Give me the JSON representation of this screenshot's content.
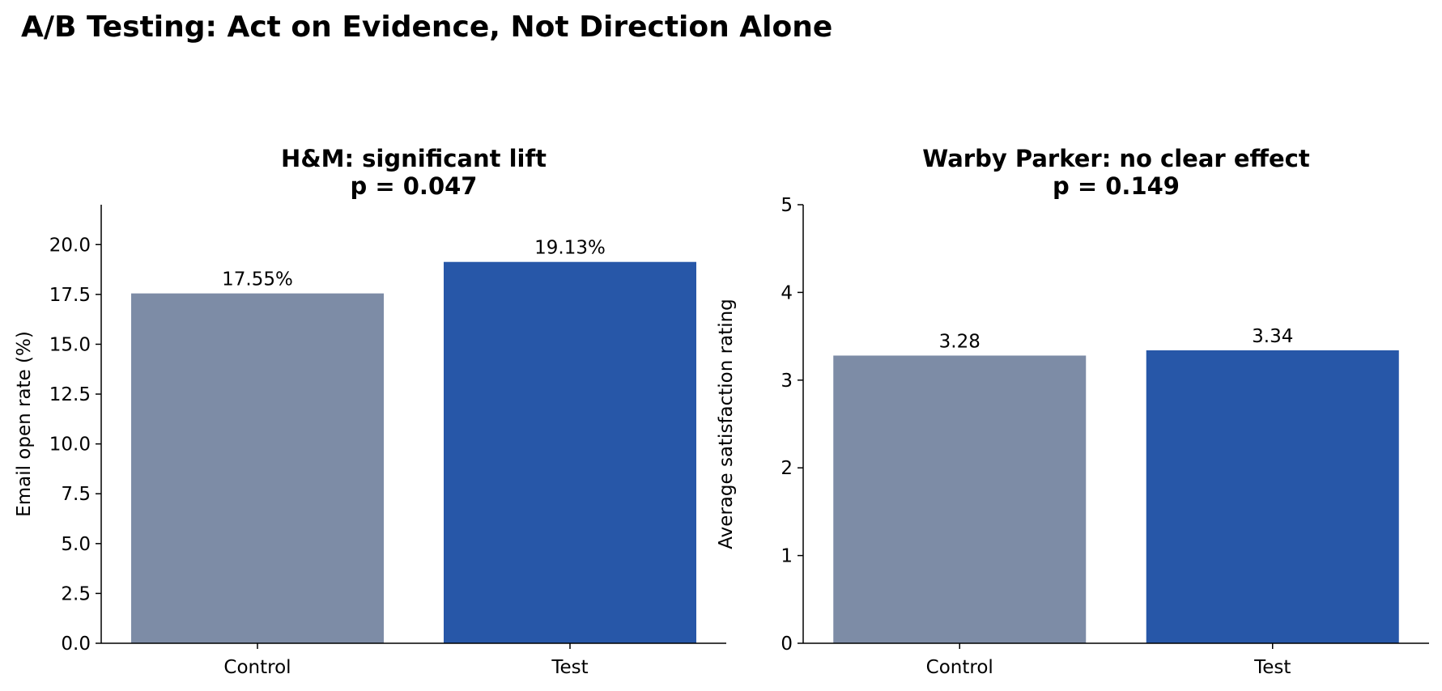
{
  "suptitle": "A/B Testing: Act on Evidence, Not Direction Alone",
  "chart_data": [
    {
      "type": "bar",
      "title": "H&M: significant lift",
      "subtitle": "p = 0.047",
      "categories": [
        "Control",
        "Test"
      ],
      "values": [
        17.55,
        19.13
      ],
      "value_labels": [
        "17.55%",
        "19.13%"
      ],
      "colors": [
        "#7d8ca6",
        "#2757a8"
      ],
      "xlabel": "",
      "ylabel": "Email open rate (%)",
      "ylim": [
        0,
        22
      ],
      "yticks": [
        0,
        2.5,
        5,
        7.5,
        10,
        12.5,
        15,
        17.5,
        20
      ],
      "ytick_labels": [
        "0.0",
        "2.5",
        "5.0",
        "7.5",
        "10.0",
        "12.5",
        "15.0",
        "17.5",
        "20.0"
      ],
      "grid": false
    },
    {
      "type": "bar",
      "title": "Warby Parker: no clear effect",
      "subtitle": "p = 0.149",
      "categories": [
        "Control",
        "Test"
      ],
      "values": [
        3.28,
        3.34
      ],
      "value_labels": [
        "3.28",
        "3.34"
      ],
      "colors": [
        "#7d8ca6",
        "#2757a8"
      ],
      "xlabel": "",
      "ylabel": "Average satisfaction rating",
      "ylim": [
        0,
        5
      ],
      "yticks": [
        0,
        1,
        2,
        3,
        4,
        5
      ],
      "ytick_labels": [
        "0",
        "1",
        "2",
        "3",
        "4",
        "5"
      ],
      "grid": false
    }
  ]
}
